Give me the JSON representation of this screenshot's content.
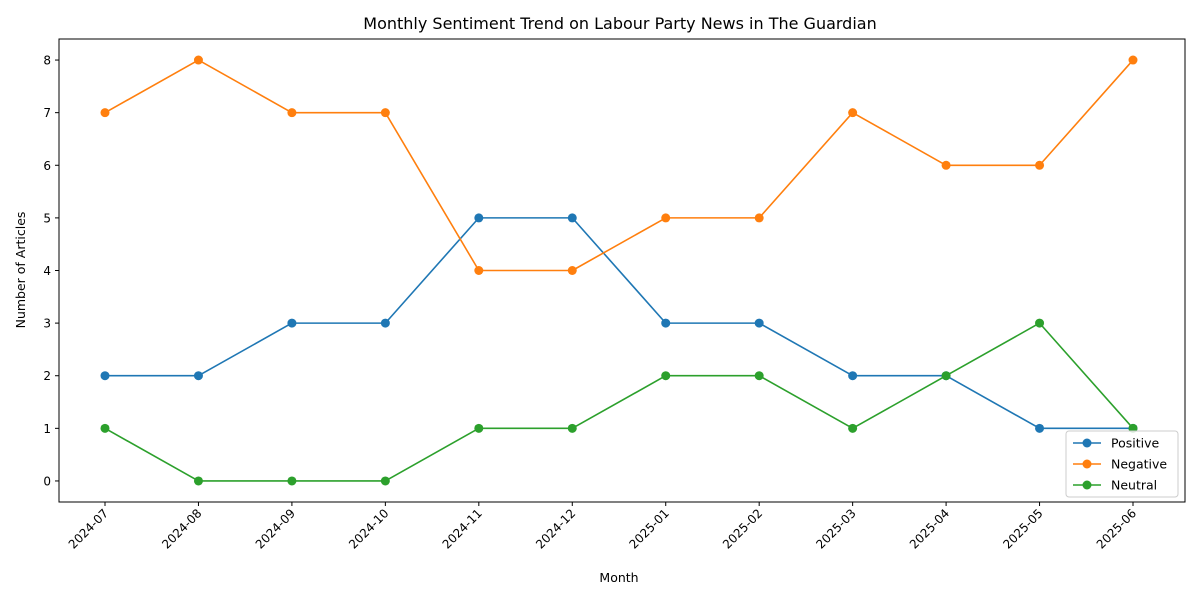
{
  "chart_data": {
    "type": "line",
    "title": "Monthly Sentiment Trend on Labour Party News in The Guardian",
    "xlabel": "Month",
    "ylabel": "Number of Articles",
    "categories": [
      "2024-07",
      "2024-08",
      "2024-09",
      "2024-10",
      "2024-11",
      "2024-12",
      "2025-01",
      "2025-02",
      "2025-03",
      "2025-04",
      "2025-05",
      "2025-06"
    ],
    "ylim": [
      -0.4,
      8.4
    ],
    "yticks": [
      0,
      1,
      2,
      3,
      4,
      5,
      6,
      7,
      8
    ],
    "grid": false,
    "legend_position": "lower-right",
    "series": [
      {
        "name": "Positive",
        "color": "#1f77b4",
        "values": [
          2,
          2,
          3,
          3,
          5,
          5,
          3,
          3,
          2,
          2,
          1,
          1
        ]
      },
      {
        "name": "Negative",
        "color": "#ff7f0e",
        "values": [
          7,
          8,
          7,
          7,
          4,
          4,
          5,
          5,
          7,
          6,
          6,
          8
        ]
      },
      {
        "name": "Neutral",
        "color": "#2ca02c",
        "values": [
          1,
          0,
          0,
          0,
          1,
          1,
          2,
          2,
          1,
          2,
          3,
          1
        ]
      }
    ]
  }
}
